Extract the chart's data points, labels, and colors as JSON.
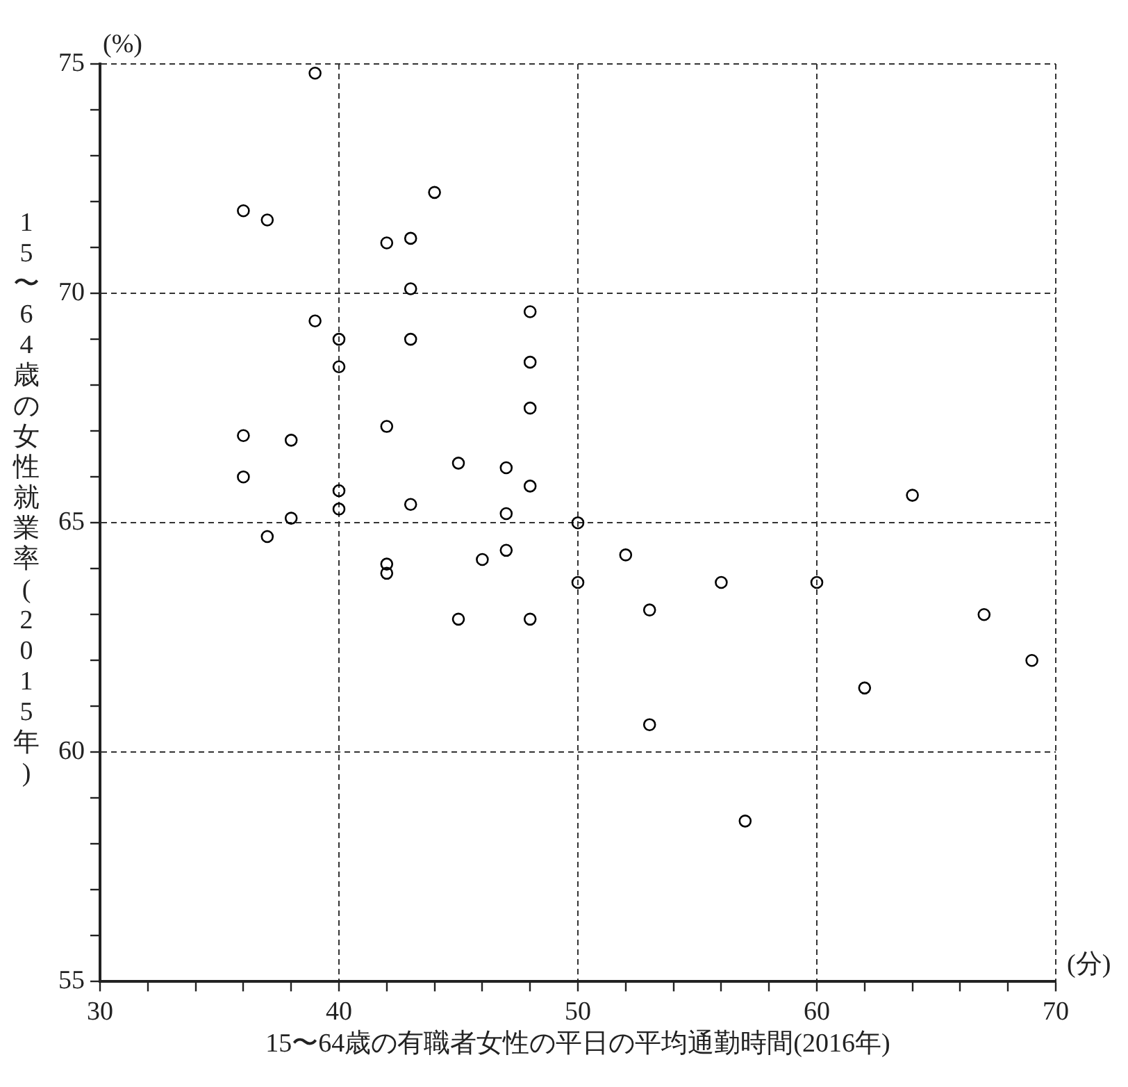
{
  "chart_data": {
    "type": "scatter",
    "xlabel": "15〜64歳の有職者女性の平日の平均通勤時間(2016年)",
    "ylabel": "15〜64歳の女性就業率(2015年)",
    "annotations": [
      "(%)",
      "(分)"
    ],
    "x": [
      39,
      44,
      36,
      37,
      42,
      43,
      43,
      39,
      40,
      43,
      40,
      48,
      48,
      48,
      42,
      36,
      38,
      45,
      47,
      36,
      48,
      40,
      40,
      43,
      47,
      38,
      50,
      37,
      42,
      42,
      46,
      47,
      50,
      45,
      48,
      52,
      53,
      53,
      56,
      60,
      64,
      67,
      69,
      62,
      57
    ],
    "series": [
      {
        "color": "#000000",
        "values": [
          74.8,
          72.2,
          71.8,
          71.6,
          71.1,
          71.2,
          70.1,
          69.4,
          69.0,
          69.0,
          68.4,
          69.6,
          68.5,
          67.5,
          67.1,
          66.9,
          66.8,
          66.3,
          66.2,
          66.0,
          65.8,
          65.7,
          65.3,
          65.4,
          65.2,
          65.1,
          65.0,
          64.7,
          64.1,
          63.9,
          64.2,
          64.4,
          63.7,
          62.9,
          62.9,
          64.3,
          63.1,
          60.6,
          63.7,
          63.7,
          65.6,
          63.0,
          62.0,
          61.4,
          58.5
        ]
      }
    ],
    "xlim": [
      30,
      70
    ],
    "xticks": [
      30,
      {
        "value": 32,
        "label": null
      },
      {
        "value": 34,
        "label": null
      },
      {
        "value": 36,
        "label": null
      },
      {
        "value": 38,
        "label": null
      },
      40,
      {
        "value": 42,
        "label": null
      },
      {
        "value": 44,
        "label": null
      },
      {
        "value": 46,
        "label": null
      },
      {
        "value": 48,
        "label": null
      },
      50,
      {
        "value": 52,
        "label": null
      },
      {
        "value": 54,
        "label": null
      },
      {
        "value": 56,
        "label": null
      },
      {
        "value": 58,
        "label": null
      },
      60,
      {
        "value": 62,
        "label": null
      },
      {
        "value": 64,
        "label": null
      },
      {
        "value": 66,
        "label": null
      },
      {
        "value": 68,
        "label": null
      },
      70
    ],
    "ylim": [
      55,
      75
    ],
    "yticks": [
      55,
      {
        "value": 56,
        "label": null
      },
      {
        "value": 57,
        "label": null
      },
      {
        "value": 58,
        "label": null
      },
      {
        "value": 59,
        "label": null
      },
      60,
      {
        "value": 61,
        "label": null
      },
      {
        "value": 62,
        "label": null
      },
      {
        "value": 63,
        "label": null
      },
      {
        "value": 64,
        "label": null
      },
      65,
      {
        "value": 66,
        "label": null
      },
      {
        "value": 67,
        "label": null
      },
      {
        "value": 68,
        "label": null
      },
      {
        "value": 69,
        "label": null
      },
      70,
      {
        "value": 71,
        "label": null
      },
      {
        "value": 72,
        "label": null
      },
      {
        "value": 73,
        "label": null
      },
      {
        "value": 74,
        "label": null
      },
      75
    ],
    "grid": true,
    "marker": "circle",
    "legend": false
  }
}
